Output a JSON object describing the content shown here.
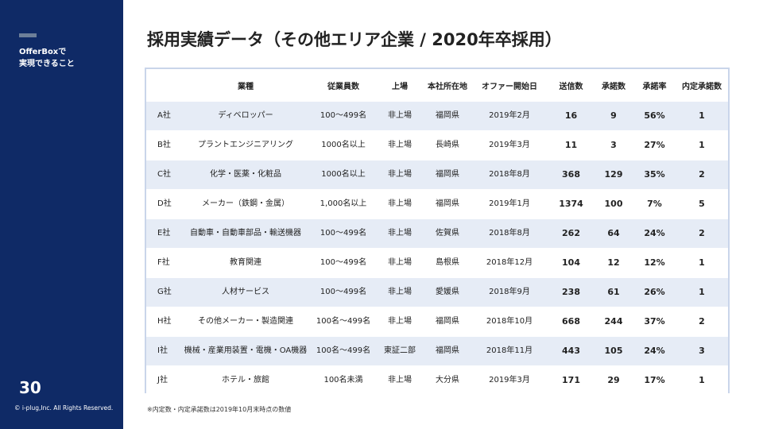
{
  "sidebar": {
    "heading_line1": "OfferBoxで",
    "heading_line2": "実現できること",
    "page_number": "30",
    "copyright": "© i-plug,Inc. All Rights Reserved."
  },
  "title": "採用実績データ（その他エリア企業 / 2020年卒採用）",
  "table": {
    "headers": [
      "",
      "業種",
      "従業員数",
      "上場",
      "本社所在地",
      "オファー開始日",
      "送信数",
      "承諾数",
      "承諾率",
      "内定承諾数"
    ],
    "rows": [
      [
        "A社",
        "ディベロッパー",
        "100〜499名",
        "非上場",
        "福岡県",
        "2019年2月",
        "16",
        "9",
        "56%",
        "1"
      ],
      [
        "B社",
        "プラントエンジニアリング",
        "1000名以上",
        "非上場",
        "長崎県",
        "2019年3月",
        "11",
        "3",
        "27%",
        "1"
      ],
      [
        "C社",
        "化学・医薬・化粧品",
        "1000名以上",
        "非上場",
        "福岡県",
        "2018年8月",
        "368",
        "129",
        "35%",
        "2"
      ],
      [
        "D社",
        "メーカー（鉄鋼・金属）",
        "1,000名以上",
        "非上場",
        "福岡県",
        "2019年1月",
        "1374",
        "100",
        "7%",
        "5"
      ],
      [
        "E社",
        "自動車・自動車部品・輸送機器",
        "100〜499名",
        "非上場",
        "佐賀県",
        "2018年8月",
        "262",
        "64",
        "24%",
        "2"
      ],
      [
        "F社",
        "教育関連",
        "100〜499名",
        "非上場",
        "島根県",
        "2018年12月",
        "104",
        "12",
        "12%",
        "1"
      ],
      [
        "G社",
        "人材サービス",
        "100〜499名",
        "非上場",
        "愛媛県",
        "2018年9月",
        "238",
        "61",
        "26%",
        "1"
      ],
      [
        "H社",
        "その他メーカー・製造関連",
        "100名〜499名",
        "非上場",
        "福岡県",
        "2018年10月",
        "668",
        "244",
        "37%",
        "2"
      ],
      [
        "I社",
        "機械・産業用装置・電機・OA機器",
        "100名〜499名",
        "東証二部",
        "福岡県",
        "2018年11月",
        "443",
        "105",
        "24%",
        "3"
      ],
      [
        "J社",
        "ホテル・旅館",
        "100名未満",
        "非上場",
        "大分県",
        "2019年3月",
        "171",
        "29",
        "17%",
        "1"
      ]
    ]
  },
  "footnote": "※内定数・内定承諾数は2019年10月末時点の数値"
}
